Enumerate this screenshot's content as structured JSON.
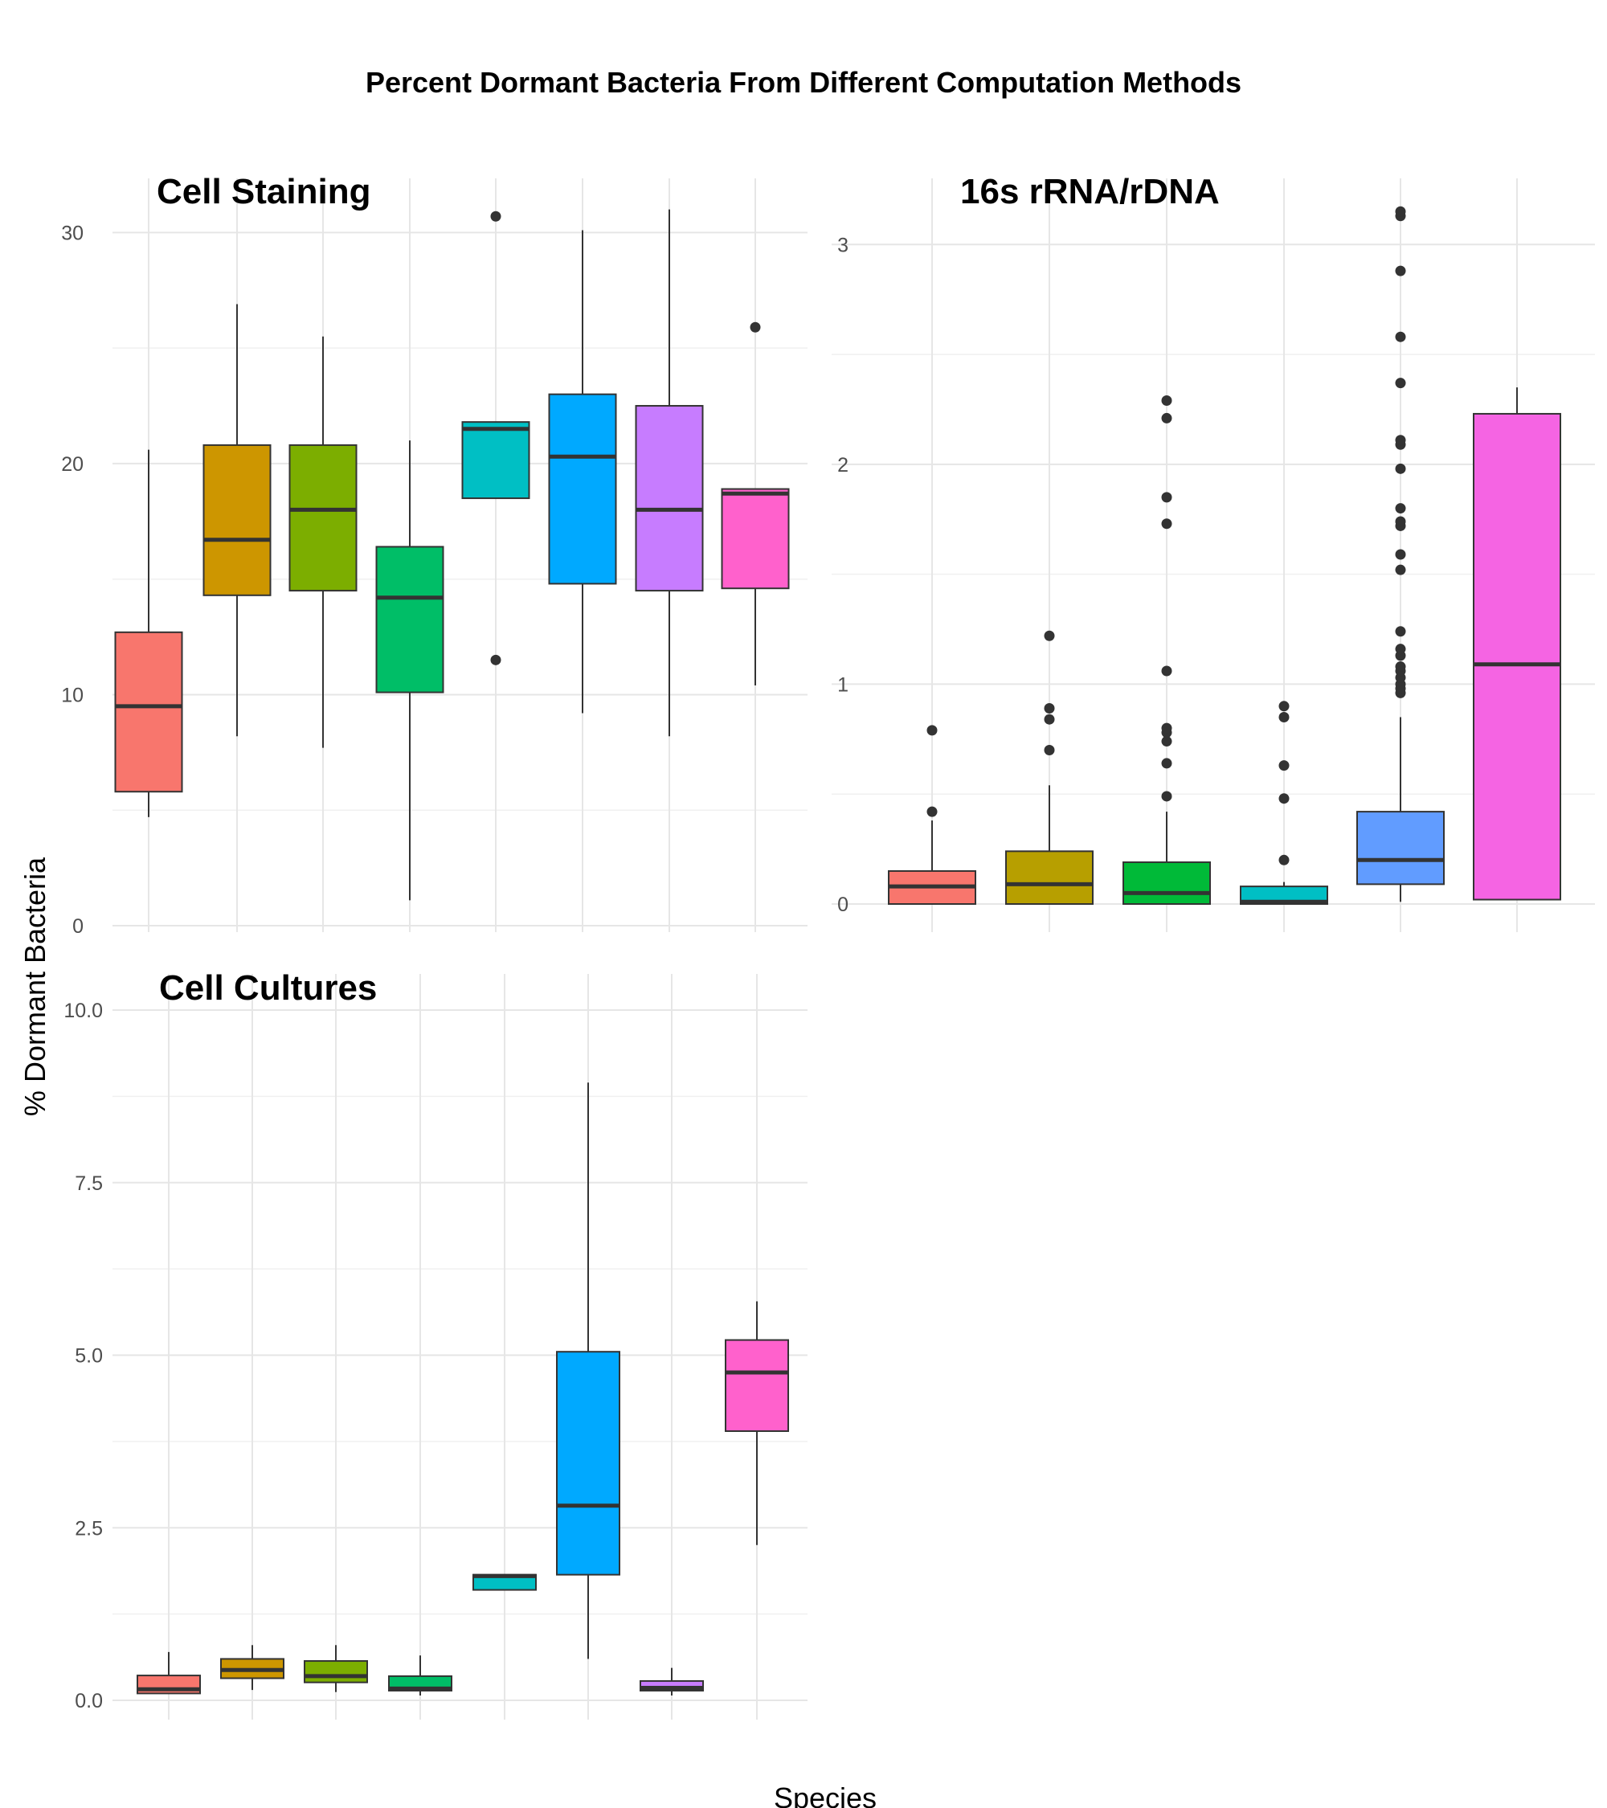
{
  "figure": {
    "title": "Percent Dormant Bacteria From Different Computation Methods",
    "ylabel": "% Dormant Bacteria",
    "xlabel": "Species"
  },
  "chart_data": [
    {
      "type": "boxplot",
      "title": "Cell Staining",
      "ylim": [
        0,
        30.5
      ],
      "yticks": [
        0,
        10,
        20,
        30
      ],
      "ytick_labels": [
        "0",
        "10",
        "20",
        "30"
      ],
      "grid": true,
      "boxes": [
        {
          "color": "#F8766D",
          "whisker_low": 4.7,
          "q1": 5.8,
          "median": 9.5,
          "q3": 12.7,
          "whisker_high": 20.6,
          "outliers": []
        },
        {
          "color": "#CD9600",
          "whisker_low": 8.2,
          "q1": 14.3,
          "median": 16.7,
          "q3": 20.8,
          "whisker_high": 26.9,
          "outliers": []
        },
        {
          "color": "#7CAE00",
          "whisker_low": 7.7,
          "q1": 14.5,
          "median": 18.0,
          "q3": 20.8,
          "whisker_high": 25.5,
          "outliers": []
        },
        {
          "color": "#00BE67",
          "whisker_low": 1.1,
          "q1": 10.1,
          "median": 14.2,
          "q3": 16.4,
          "whisker_high": 21.0,
          "outliers": []
        },
        {
          "color": "#00BFC4",
          "whisker_low": 18.5,
          "q1": 18.5,
          "median": 21.5,
          "q3": 21.8,
          "whisker_high": 21.8,
          "outliers": [
            30.7,
            11.5
          ]
        },
        {
          "color": "#00A9FF",
          "whisker_low": 9.2,
          "q1": 14.8,
          "median": 20.3,
          "q3": 23.0,
          "whisker_high": 30.1,
          "outliers": []
        },
        {
          "color": "#C77CFF",
          "whisker_low": 8.2,
          "q1": 14.5,
          "median": 18.0,
          "q3": 22.5,
          "whisker_high": 31.0,
          "outliers": []
        },
        {
          "color": "#FF61CC",
          "whisker_low": 10.4,
          "q1": 14.6,
          "median": 18.7,
          "q3": 18.9,
          "whisker_high": 18.9,
          "outliers": [
            25.9
          ]
        }
      ]
    },
    {
      "type": "boxplot",
      "title": "16s rRNA/rDNA",
      "ylim": [
        0,
        3.14
      ],
      "yticks": [
        0,
        1,
        2,
        3
      ],
      "ytick_labels": [
        "0",
        "1",
        "2",
        "3"
      ],
      "grid": true,
      "boxes": [
        {
          "color": "#F8766D",
          "whisker_low": 0.0,
          "q1": 0.0,
          "median": 0.08,
          "q3": 0.15,
          "whisker_high": 0.38,
          "outliers": [
            0.42,
            0.79
          ]
        },
        {
          "color": "#B79F00",
          "whisker_low": 0.0,
          "q1": 0.0,
          "median": 0.09,
          "q3": 0.24,
          "whisker_high": 0.54,
          "outliers": [
            0.7,
            0.84,
            0.89,
            1.22
          ]
        },
        {
          "color": "#00BA38",
          "whisker_low": 0.0,
          "q1": 0.0,
          "median": 0.05,
          "q3": 0.19,
          "whisker_high": 0.42,
          "outliers": [
            0.49,
            0.64,
            0.74,
            0.78,
            0.8,
            1.06,
            1.73,
            1.85,
            2.21,
            2.29
          ]
        },
        {
          "color": "#00BFC4",
          "whisker_low": 0.0,
          "q1": 0.0,
          "median": 0.01,
          "q3": 0.08,
          "whisker_high": 0.1,
          "outliers": [
            0.2,
            0.48,
            0.63,
            0.85,
            0.9
          ]
        },
        {
          "color": "#619CFF",
          "whisker_low": 0.01,
          "q1": 0.09,
          "median": 0.2,
          "q3": 0.42,
          "whisker_high": 0.85,
          "outliers": [
            0.96,
            0.98,
            1.0,
            1.03,
            1.06,
            1.08,
            1.13,
            1.16,
            1.24,
            1.52,
            1.59,
            1.72,
            1.74,
            1.8,
            1.98,
            2.09,
            2.11,
            2.37,
            2.58,
            2.88,
            3.13,
            3.15
          ]
        },
        {
          "color": "#F564E3",
          "whisker_low": 0.02,
          "q1": 0.02,
          "median": 1.09,
          "q3": 2.23,
          "whisker_high": 2.35,
          "outliers": []
        }
      ]
    },
    {
      "type": "boxplot",
      "title": "Cell Cultures",
      "ylim": [
        0,
        10.0
      ],
      "yticks": [
        0,
        2.5,
        5.0,
        7.5,
        10.0
      ],
      "ytick_labels": [
        "0.0",
        "2.5",
        "5.0",
        "7.5",
        "10.0"
      ],
      "grid": true,
      "boxes": [
        {
          "color": "#F8766D",
          "whisker_low": 0.1,
          "q1": 0.1,
          "median": 0.16,
          "q3": 0.36,
          "whisker_high": 0.7,
          "outliers": []
        },
        {
          "color": "#CD9600",
          "whisker_low": 0.15,
          "q1": 0.32,
          "median": 0.44,
          "q3": 0.6,
          "whisker_high": 0.8,
          "outliers": []
        },
        {
          "color": "#7CAE00",
          "whisker_low": 0.12,
          "q1": 0.26,
          "median": 0.35,
          "q3": 0.57,
          "whisker_high": 0.8,
          "outliers": []
        },
        {
          "color": "#00BE67",
          "whisker_low": 0.07,
          "q1": 0.14,
          "median": 0.17,
          "q3": 0.35,
          "whisker_high": 0.65,
          "outliers": []
        },
        {
          "color": "#00BFC4",
          "whisker_low": 1.6,
          "q1": 1.6,
          "median": 1.8,
          "q3": 1.82,
          "whisker_high": 1.82,
          "outliers": []
        },
        {
          "color": "#00A9FF",
          "whisker_low": 0.6,
          "q1": 1.82,
          "median": 2.82,
          "q3": 5.05,
          "whisker_high": 8.95,
          "outliers": []
        },
        {
          "color": "#C77CFF",
          "whisker_low": 0.07,
          "q1": 0.14,
          "median": 0.18,
          "q3": 0.28,
          "whisker_high": 0.47,
          "outliers": []
        },
        {
          "color": "#FF61CC",
          "whisker_low": 2.25,
          "q1": 3.9,
          "median": 4.75,
          "q3": 5.22,
          "whisker_high": 5.78,
          "outliers": []
        }
      ]
    }
  ]
}
